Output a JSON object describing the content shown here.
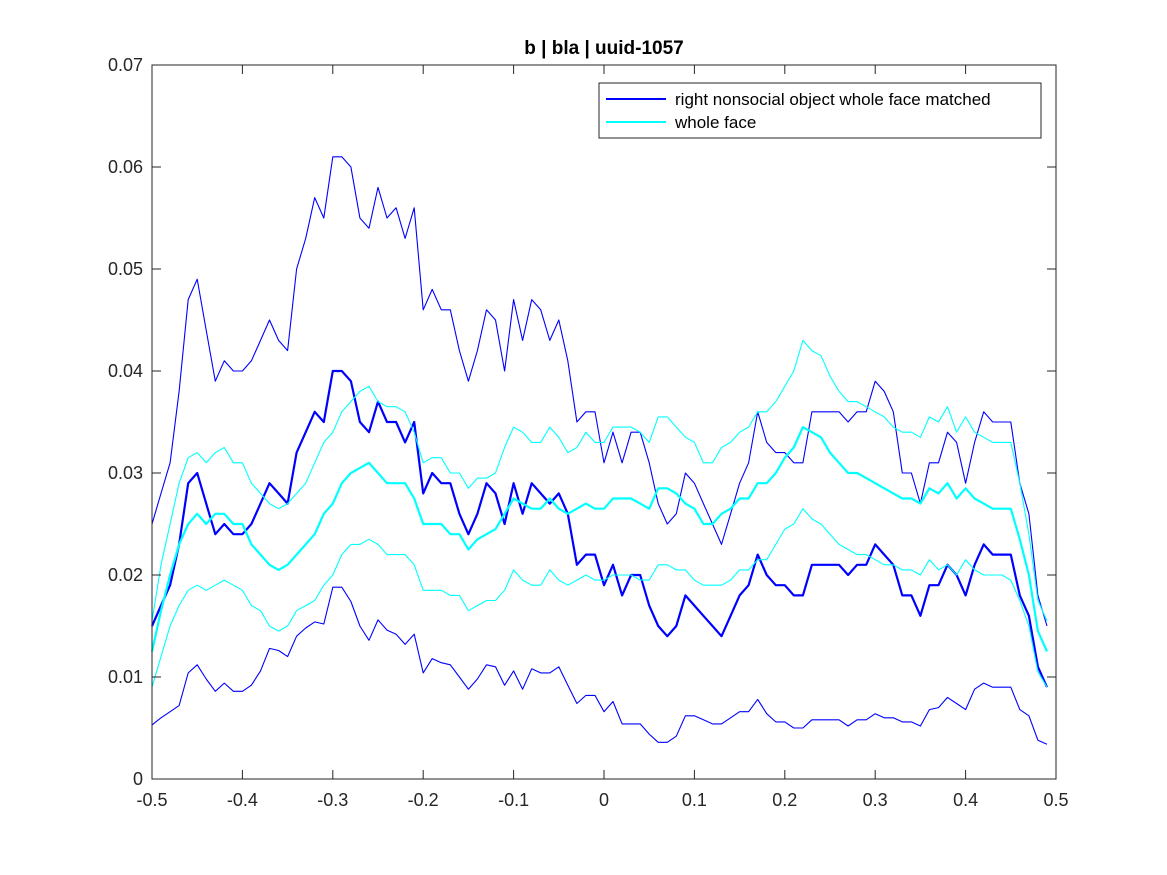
{
  "chart_data": {
    "type": "line",
    "title": "b | bla | uuid-1057",
    "xlabel": "",
    "ylabel": "",
    "xlim": [
      -0.5,
      0.5
    ],
    "ylim": [
      0,
      0.07
    ],
    "xticks": [
      -0.5,
      -0.4,
      -0.3,
      -0.2,
      -0.1,
      0,
      0.1,
      0.2,
      0.3,
      0.4,
      0.5
    ],
    "xtick_labels": [
      "-0.5",
      "-0.4",
      "-0.3",
      "-0.2",
      "-0.1",
      "0",
      "0.1",
      "0.2",
      "0.3",
      "0.4",
      "0.5"
    ],
    "yticks": [
      0,
      0.01,
      0.02,
      0.03,
      0.04,
      0.05,
      0.06,
      0.07
    ],
    "ytick_labels": [
      "0",
      "0.01",
      "0.02",
      "0.03",
      "0.04",
      "0.05",
      "0.06",
      "0.07"
    ],
    "grid": false,
    "legend_position": "top-right",
    "legend": [
      {
        "label": "right nonsocial object whole face matched",
        "color": "#0000ff"
      },
      {
        "label": "whole face",
        "color": "#00ffff"
      }
    ],
    "x": [
      -0.5,
      -0.49,
      -0.48,
      -0.47,
      -0.46,
      -0.45,
      -0.44,
      -0.43,
      -0.42,
      -0.41,
      -0.4,
      -0.39,
      -0.38,
      -0.37,
      -0.36,
      -0.35,
      -0.34,
      -0.33,
      -0.32,
      -0.31,
      -0.3,
      -0.29,
      -0.28,
      -0.27,
      -0.26,
      -0.25,
      -0.24,
      -0.23,
      -0.22,
      -0.21,
      -0.2,
      -0.19,
      -0.18,
      -0.17,
      -0.16,
      -0.15,
      -0.14,
      -0.13,
      -0.12,
      -0.11,
      -0.1,
      -0.09,
      -0.08,
      -0.07,
      -0.06,
      -0.05,
      -0.04,
      -0.03,
      -0.02,
      -0.01,
      0,
      0.01,
      0.02,
      0.03,
      0.04,
      0.05,
      0.06,
      0.07,
      0.08,
      0.09,
      0.1,
      0.11,
      0.12,
      0.13,
      0.14,
      0.15,
      0.16,
      0.17,
      0.18,
      0.19,
      0.2,
      0.21,
      0.22,
      0.23,
      0.24,
      0.25,
      0.26,
      0.27,
      0.28,
      0.29,
      0.3,
      0.31,
      0.32,
      0.33,
      0.34,
      0.35,
      0.36,
      0.37,
      0.38,
      0.39,
      0.4,
      0.41,
      0.42,
      0.43,
      0.44,
      0.45,
      0.46,
      0.47,
      0.48,
      0.49
    ],
    "series": [
      {
        "color": "#0000ff",
        "width": 2.2,
        "values": [
          0.015,
          0.017,
          0.019,
          0.023,
          0.029,
          0.03,
          0.027,
          0.024,
          0.025,
          0.024,
          0.024,
          0.025,
          0.027,
          0.029,
          0.028,
          0.027,
          0.032,
          0.034,
          0.036,
          0.035,
          0.04,
          0.04,
          0.039,
          0.035,
          0.034,
          0.037,
          0.035,
          0.035,
          0.033,
          0.035,
          0.028,
          0.03,
          0.029,
          0.029,
          0.026,
          0.024,
          0.026,
          0.029,
          0.028,
          0.025,
          0.029,
          0.026,
          0.029,
          0.028,
          0.027,
          0.028,
          0.026,
          0.021,
          0.022,
          0.022,
          0.019,
          0.021,
          0.018,
          0.02,
          0.02,
          0.017,
          0.015,
          0.014,
          0.015,
          0.018,
          0.017,
          0.016,
          0.015,
          0.014,
          0.016,
          0.018,
          0.019,
          0.022,
          0.02,
          0.019,
          0.019,
          0.018,
          0.018,
          0.021,
          0.021,
          0.021,
          0.021,
          0.02,
          0.021,
          0.021,
          0.023,
          0.022,
          0.021,
          0.018,
          0.018,
          0.016,
          0.019,
          0.019,
          0.021,
          0.02,
          0.018,
          0.021,
          0.023,
          0.022,
          0.022,
          0.022,
          0.018,
          0.016,
          0.011,
          0.009
        ]
      },
      {
        "color": "#0000ff",
        "width": 1.1,
        "values": [
          0.025,
          0.028,
          0.031,
          0.038,
          0.047,
          0.049,
          0.044,
          0.039,
          0.041,
          0.04,
          0.04,
          0.041,
          0.043,
          0.045,
          0.043,
          0.042,
          0.05,
          0.053,
          0.057,
          0.055,
          0.061,
          0.061,
          0.06,
          0.055,
          0.054,
          0.058,
          0.055,
          0.056,
          0.053,
          0.056,
          0.046,
          0.048,
          0.046,
          0.046,
          0.042,
          0.039,
          0.042,
          0.046,
          0.045,
          0.04,
          0.047,
          0.043,
          0.047,
          0.046,
          0.043,
          0.045,
          0.041,
          0.035,
          0.036,
          0.036,
          0.031,
          0.034,
          0.031,
          0.034,
          0.034,
          0.031,
          0.027,
          0.025,
          0.026,
          0.03,
          0.029,
          0.027,
          0.025,
          0.023,
          0.026,
          0.029,
          0.031,
          0.036,
          0.033,
          0.032,
          0.032,
          0.031,
          0.031,
          0.036,
          0.036,
          0.036,
          0.036,
          0.035,
          0.036,
          0.036,
          0.039,
          0.038,
          0.036,
          0.03,
          0.03,
          0.027,
          0.031,
          0.031,
          0.034,
          0.033,
          0.029,
          0.033,
          0.036,
          0.035,
          0.035,
          0.035,
          0.029,
          0.026,
          0.018,
          0.015
        ]
      },
      {
        "color": "#0000ff",
        "width": 1.1,
        "values": [
          0.0053,
          0.006,
          0.0066,
          0.0072,
          0.0104,
          0.0112,
          0.0098,
          0.0086,
          0.0094,
          0.0086,
          0.0086,
          0.0092,
          0.0106,
          0.0128,
          0.0126,
          0.012,
          0.014,
          0.0148,
          0.0154,
          0.0152,
          0.0188,
          0.0188,
          0.0174,
          0.015,
          0.0136,
          0.0156,
          0.0146,
          0.0142,
          0.0132,
          0.0142,
          0.0104,
          0.0118,
          0.0114,
          0.0112,
          0.01,
          0.0088,
          0.0098,
          0.0112,
          0.011,
          0.0092,
          0.0106,
          0.0088,
          0.0108,
          0.0104,
          0.0104,
          0.011,
          0.0092,
          0.0074,
          0.0082,
          0.0082,
          0.0066,
          0.0076,
          0.0054,
          0.0054,
          0.0054,
          0.0044,
          0.0036,
          0.0036,
          0.0042,
          0.0062,
          0.0062,
          0.0058,
          0.0054,
          0.0054,
          0.006,
          0.0066,
          0.0066,
          0.0078,
          0.0064,
          0.0056,
          0.0056,
          0.005,
          0.005,
          0.0058,
          0.0058,
          0.0058,
          0.0058,
          0.0052,
          0.0058,
          0.0058,
          0.0064,
          0.006,
          0.006,
          0.0056,
          0.0056,
          0.0052,
          0.0068,
          0.007,
          0.008,
          0.0074,
          0.0068,
          0.0088,
          0.0094,
          0.009,
          0.009,
          0.009,
          0.0068,
          0.0062,
          0.0038,
          0.0034
        ]
      },
      {
        "color": "#00ffff",
        "width": 2.2,
        "values": [
          0.0125,
          0.0165,
          0.02,
          0.023,
          0.025,
          0.026,
          0.025,
          0.026,
          0.026,
          0.025,
          0.025,
          0.023,
          0.022,
          0.021,
          0.0205,
          0.021,
          0.022,
          0.023,
          0.024,
          0.026,
          0.027,
          0.029,
          0.03,
          0.0305,
          0.031,
          0.03,
          0.029,
          0.029,
          0.029,
          0.0275,
          0.025,
          0.025,
          0.025,
          0.024,
          0.024,
          0.0225,
          0.0235,
          0.024,
          0.0245,
          0.026,
          0.0275,
          0.027,
          0.0265,
          0.0265,
          0.0275,
          0.0265,
          0.026,
          0.0265,
          0.027,
          0.0265,
          0.0265,
          0.0275,
          0.0275,
          0.0275,
          0.027,
          0.0265,
          0.0285,
          0.0285,
          0.028,
          0.027,
          0.0265,
          0.025,
          0.025,
          0.026,
          0.0265,
          0.0275,
          0.0275,
          0.029,
          0.029,
          0.03,
          0.0315,
          0.0325,
          0.0345,
          0.034,
          0.0335,
          0.032,
          0.031,
          0.03,
          0.03,
          0.0295,
          0.029,
          0.0285,
          0.028,
          0.0275,
          0.0275,
          0.027,
          0.0285,
          0.028,
          0.029,
          0.0275,
          0.0285,
          0.0275,
          0.027,
          0.0265,
          0.0265,
          0.0265,
          0.0235,
          0.02,
          0.0145,
          0.0125
        ]
      },
      {
        "color": "#00ffff",
        "width": 1.1,
        "values": [
          0.0155,
          0.021,
          0.025,
          0.029,
          0.0315,
          0.032,
          0.031,
          0.032,
          0.0325,
          0.031,
          0.031,
          0.029,
          0.028,
          0.027,
          0.0265,
          0.027,
          0.028,
          0.029,
          0.031,
          0.033,
          0.034,
          0.036,
          0.037,
          0.038,
          0.0385,
          0.037,
          0.0365,
          0.0365,
          0.036,
          0.034,
          0.031,
          0.0315,
          0.0315,
          0.03,
          0.03,
          0.0285,
          0.0295,
          0.0295,
          0.03,
          0.0325,
          0.0345,
          0.034,
          0.033,
          0.033,
          0.0345,
          0.0335,
          0.032,
          0.0325,
          0.034,
          0.033,
          0.033,
          0.0345,
          0.0345,
          0.0345,
          0.034,
          0.033,
          0.0355,
          0.0355,
          0.0345,
          0.0335,
          0.033,
          0.031,
          0.031,
          0.0325,
          0.033,
          0.034,
          0.0345,
          0.036,
          0.036,
          0.037,
          0.0385,
          0.04,
          0.043,
          0.042,
          0.0415,
          0.0395,
          0.038,
          0.037,
          0.037,
          0.0365,
          0.036,
          0.0355,
          0.0345,
          0.034,
          0.034,
          0.0335,
          0.0355,
          0.035,
          0.0365,
          0.034,
          0.0355,
          0.034,
          0.0335,
          0.033,
          0.033,
          0.033,
          0.029,
          0.024,
          0.0175,
          0.0155
        ]
      },
      {
        "color": "#00ffff",
        "width": 1.1,
        "values": [
          0.009,
          0.012,
          0.015,
          0.017,
          0.0185,
          0.019,
          0.0185,
          0.019,
          0.0195,
          0.019,
          0.0185,
          0.017,
          0.0165,
          0.015,
          0.0145,
          0.015,
          0.0165,
          0.017,
          0.0175,
          0.019,
          0.02,
          0.022,
          0.023,
          0.023,
          0.0235,
          0.023,
          0.022,
          0.022,
          0.022,
          0.021,
          0.0185,
          0.0185,
          0.0185,
          0.018,
          0.018,
          0.0165,
          0.017,
          0.0175,
          0.0175,
          0.0185,
          0.0205,
          0.0195,
          0.019,
          0.019,
          0.0205,
          0.0195,
          0.019,
          0.0195,
          0.02,
          0.0195,
          0.0195,
          0.02,
          0.02,
          0.02,
          0.0195,
          0.0195,
          0.021,
          0.021,
          0.0205,
          0.0205,
          0.0195,
          0.019,
          0.019,
          0.019,
          0.0195,
          0.0205,
          0.0205,
          0.0215,
          0.0215,
          0.023,
          0.0245,
          0.025,
          0.0265,
          0.0255,
          0.025,
          0.024,
          0.023,
          0.0225,
          0.022,
          0.022,
          0.0215,
          0.021,
          0.021,
          0.0205,
          0.0205,
          0.02,
          0.0215,
          0.0205,
          0.021,
          0.02,
          0.0215,
          0.0205,
          0.02,
          0.02,
          0.02,
          0.0195,
          0.0175,
          0.015,
          0.0105,
          0.009
        ]
      }
    ]
  }
}
